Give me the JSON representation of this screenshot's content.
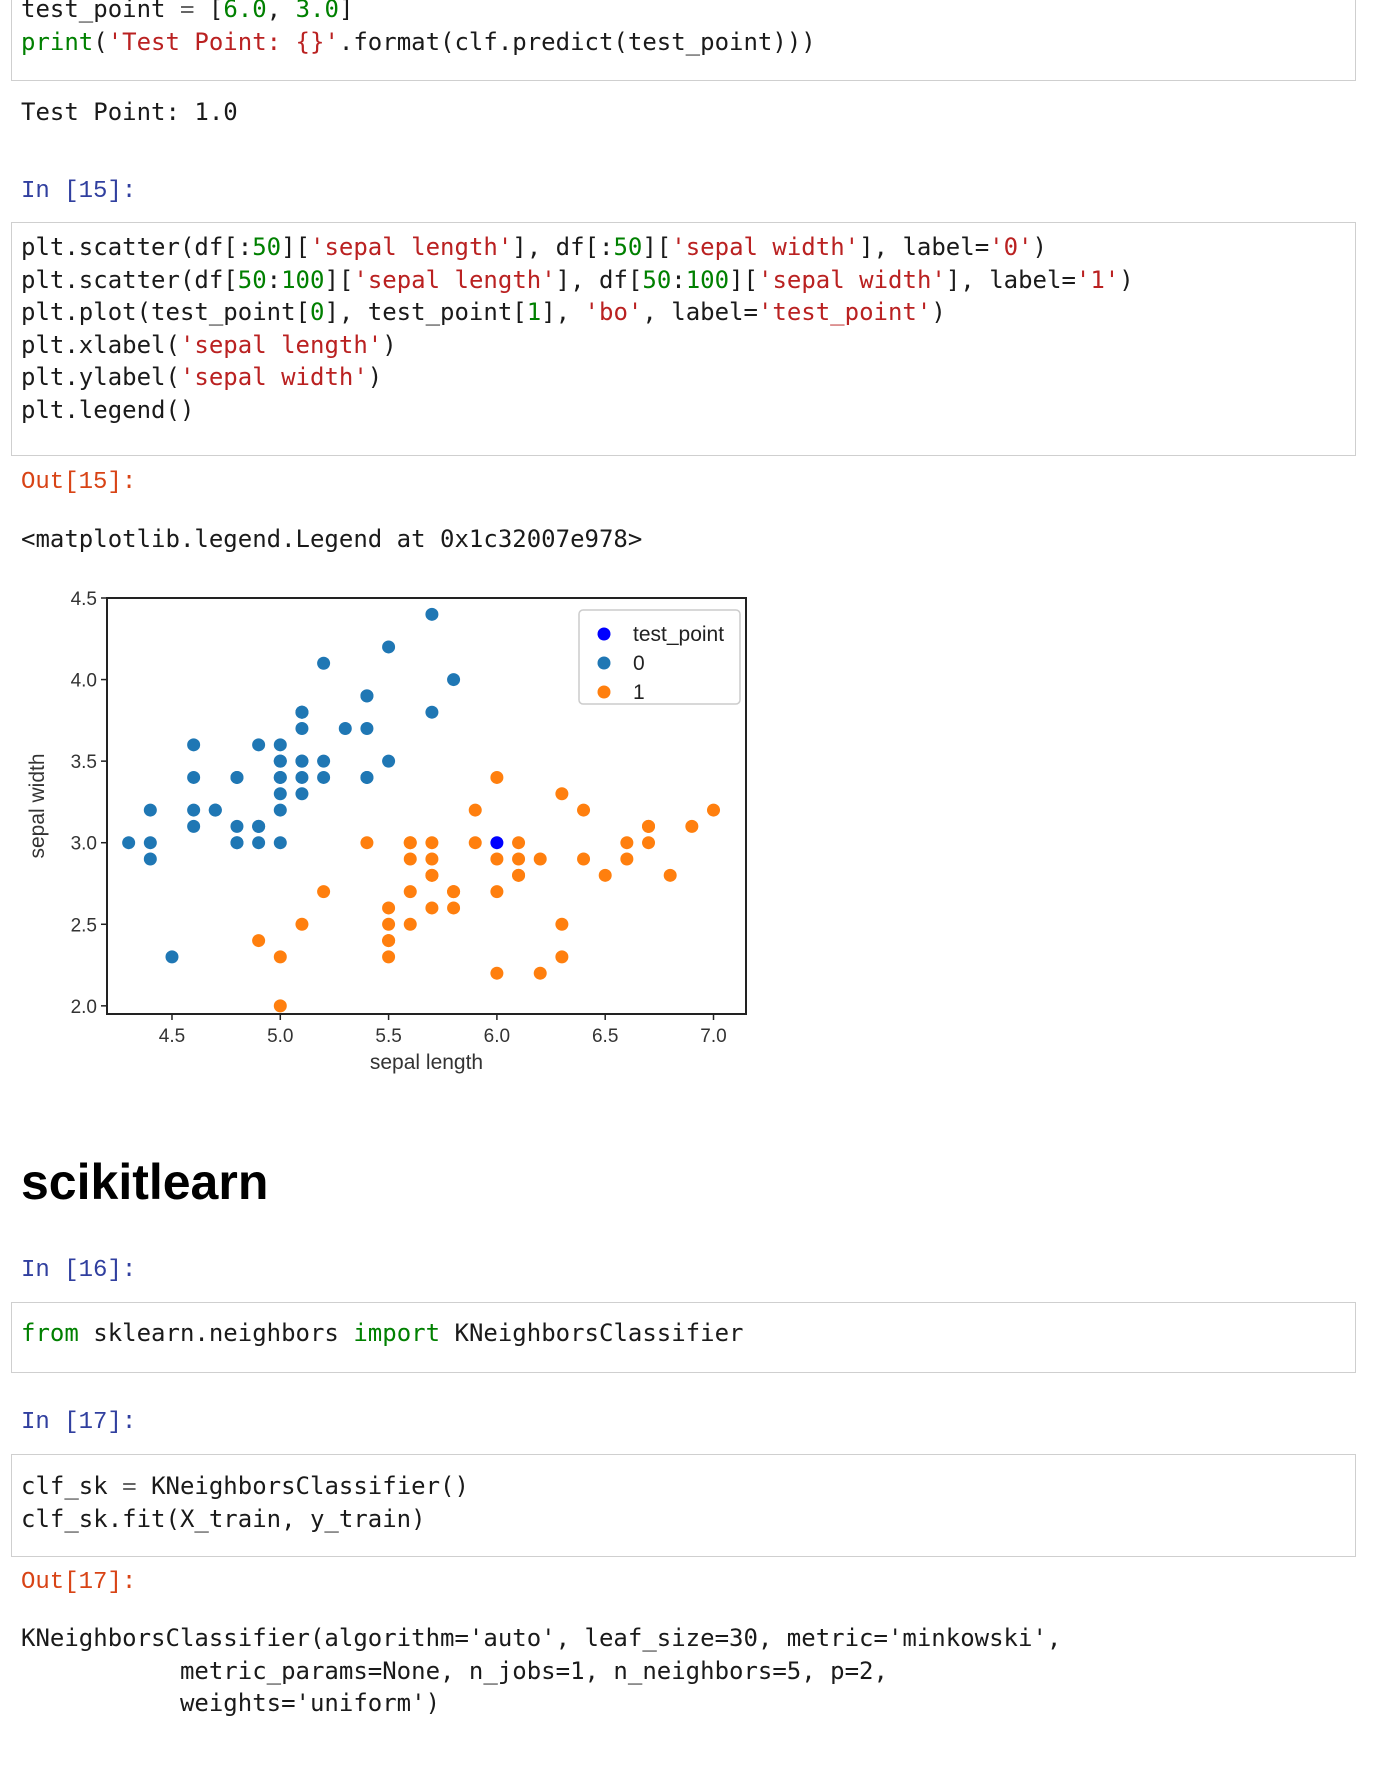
{
  "cell14": {
    "lines": [
      [
        {
          "t": "test_point",
          "c": ""
        },
        {
          "t": " = ",
          "c": "op"
        },
        {
          "t": "[",
          "c": ""
        },
        {
          "t": "6.0",
          "c": "num"
        },
        {
          "t": ", ",
          "c": ""
        },
        {
          "t": "3.0",
          "c": "num"
        },
        {
          "t": "]",
          "c": ""
        }
      ],
      [
        {
          "t": "print",
          "c": "kw"
        },
        {
          "t": "(",
          "c": ""
        },
        {
          "t": "'Test Point: {}'",
          "c": "str"
        },
        {
          "t": ".format(clf.predict(test_point)))",
          "c": ""
        }
      ]
    ],
    "output": "Test Point: 1.0"
  },
  "cell15": {
    "prompt_in": "In [15]:",
    "lines": [
      [
        {
          "t": "plt.scatter(df[:",
          "c": ""
        },
        {
          "t": "50",
          "c": "num"
        },
        {
          "t": "][",
          "c": ""
        },
        {
          "t": "'sepal length'",
          "c": "str"
        },
        {
          "t": "], df[:",
          "c": ""
        },
        {
          "t": "50",
          "c": "num"
        },
        {
          "t": "][",
          "c": ""
        },
        {
          "t": "'sepal width'",
          "c": "str"
        },
        {
          "t": "], label=",
          "c": ""
        },
        {
          "t": "'0'",
          "c": "str"
        },
        {
          "t": ")",
          "c": ""
        }
      ],
      [
        {
          "t": "plt.scatter(df[",
          "c": ""
        },
        {
          "t": "50",
          "c": "num"
        },
        {
          "t": ":",
          "c": ""
        },
        {
          "t": "100",
          "c": "num"
        },
        {
          "t": "][",
          "c": ""
        },
        {
          "t": "'sepal length'",
          "c": "str"
        },
        {
          "t": "], df[",
          "c": ""
        },
        {
          "t": "50",
          "c": "num"
        },
        {
          "t": ":",
          "c": ""
        },
        {
          "t": "100",
          "c": "num"
        },
        {
          "t": "][",
          "c": ""
        },
        {
          "t": "'sepal width'",
          "c": "str"
        },
        {
          "t": "], label=",
          "c": ""
        },
        {
          "t": "'1'",
          "c": "str"
        },
        {
          "t": ")",
          "c": ""
        }
      ],
      [
        {
          "t": "plt.plot(test_point[",
          "c": ""
        },
        {
          "t": "0",
          "c": "num"
        },
        {
          "t": "], test_point[",
          "c": ""
        },
        {
          "t": "1",
          "c": "num"
        },
        {
          "t": "], ",
          "c": ""
        },
        {
          "t": "'bo'",
          "c": "str"
        },
        {
          "t": ", label=",
          "c": ""
        },
        {
          "t": "'test_point'",
          "c": "str"
        },
        {
          "t": ")",
          "c": ""
        }
      ],
      [
        {
          "t": "plt.xlabel(",
          "c": ""
        },
        {
          "t": "'sepal length'",
          "c": "str"
        },
        {
          "t": ")",
          "c": ""
        }
      ],
      [
        {
          "t": "plt.ylabel(",
          "c": ""
        },
        {
          "t": "'sepal width'",
          "c": "str"
        },
        {
          "t": ")",
          "c": ""
        }
      ],
      [
        {
          "t": "plt.legend()",
          "c": ""
        }
      ]
    ],
    "prompt_out": "Out[15]:",
    "output": "<matplotlib.legend.Legend at 0x1c32007e978>"
  },
  "chart_data": {
    "type": "scatter",
    "xlabel": "sepal length",
    "ylabel": "sepal width",
    "xlim": [
      4.2,
      7.15
    ],
    "ylim": [
      1.95,
      4.5
    ],
    "xticks": [
      "4.5",
      "5.0",
      "5.5",
      "6.0",
      "6.5",
      "7.0"
    ],
    "xtick_values": [
      4.5,
      5.0,
      5.5,
      6.0,
      6.5,
      7.0
    ],
    "yticks": [
      "2.0",
      "2.5",
      "3.0",
      "3.5",
      "4.0",
      "4.5"
    ],
    "ytick_values": [
      2.0,
      2.5,
      3.0,
      3.5,
      4.0,
      4.5
    ],
    "legend_position": "top-right",
    "legend": [
      "test_point",
      "0",
      "1"
    ],
    "series": [
      {
        "name": "0",
        "color": "#1f77b4",
        "points": [
          [
            5.1,
            3.5
          ],
          [
            4.9,
            3.0
          ],
          [
            4.7,
            3.2
          ],
          [
            4.6,
            3.1
          ],
          [
            5.0,
            3.6
          ],
          [
            5.4,
            3.9
          ],
          [
            4.6,
            3.4
          ],
          [
            5.0,
            3.4
          ],
          [
            4.4,
            2.9
          ],
          [
            4.9,
            3.1
          ],
          [
            5.4,
            3.7
          ],
          [
            4.8,
            3.4
          ],
          [
            4.8,
            3.0
          ],
          [
            4.3,
            3.0
          ],
          [
            5.8,
            4.0
          ],
          [
            5.7,
            4.4
          ],
          [
            5.4,
            3.9
          ],
          [
            5.1,
            3.5
          ],
          [
            5.7,
            3.8
          ],
          [
            5.1,
            3.8
          ],
          [
            5.4,
            3.4
          ],
          [
            5.1,
            3.7
          ],
          [
            4.6,
            3.6
          ],
          [
            5.1,
            3.3
          ],
          [
            4.8,
            3.4
          ],
          [
            5.0,
            3.0
          ],
          [
            5.0,
            3.4
          ],
          [
            5.2,
            3.5
          ],
          [
            5.2,
            3.4
          ],
          [
            4.7,
            3.2
          ],
          [
            4.8,
            3.1
          ],
          [
            5.4,
            3.4
          ],
          [
            5.2,
            4.1
          ],
          [
            5.5,
            4.2
          ],
          [
            4.9,
            3.1
          ],
          [
            5.0,
            3.2
          ],
          [
            5.5,
            3.5
          ],
          [
            4.9,
            3.6
          ],
          [
            4.4,
            3.0
          ],
          [
            5.1,
            3.4
          ],
          [
            5.0,
            3.5
          ],
          [
            4.5,
            2.3
          ],
          [
            4.4,
            3.2
          ],
          [
            5.0,
            3.5
          ],
          [
            5.1,
            3.8
          ],
          [
            4.8,
            3.0
          ],
          [
            5.1,
            3.8
          ],
          [
            4.6,
            3.2
          ],
          [
            5.3,
            3.7
          ],
          [
            5.0,
            3.3
          ]
        ]
      },
      {
        "name": "1",
        "color": "#ff7f0e",
        "points": [
          [
            7.0,
            3.2
          ],
          [
            6.4,
            3.2
          ],
          [
            6.9,
            3.1
          ],
          [
            5.5,
            2.3
          ],
          [
            6.5,
            2.8
          ],
          [
            5.7,
            2.8
          ],
          [
            6.3,
            3.3
          ],
          [
            4.9,
            2.4
          ],
          [
            6.6,
            2.9
          ],
          [
            5.2,
            2.7
          ],
          [
            5.0,
            2.0
          ],
          [
            5.9,
            3.0
          ],
          [
            6.0,
            2.2
          ],
          [
            6.1,
            2.9
          ],
          [
            5.6,
            2.9
          ],
          [
            6.7,
            3.1
          ],
          [
            5.6,
            3.0
          ],
          [
            5.8,
            2.7
          ],
          [
            6.2,
            2.2
          ],
          [
            5.6,
            2.5
          ],
          [
            5.9,
            3.2
          ],
          [
            6.1,
            2.8
          ],
          [
            6.3,
            2.5
          ],
          [
            6.1,
            2.8
          ],
          [
            6.4,
            2.9
          ],
          [
            6.6,
            3.0
          ],
          [
            6.8,
            2.8
          ],
          [
            6.7,
            3.0
          ],
          [
            6.0,
            2.9
          ],
          [
            5.7,
            2.6
          ],
          [
            5.5,
            2.4
          ],
          [
            5.5,
            2.4
          ],
          [
            5.8,
            2.7
          ],
          [
            6.0,
            2.7
          ],
          [
            5.4,
            3.0
          ],
          [
            6.0,
            3.4
          ],
          [
            6.7,
            3.1
          ],
          [
            6.3,
            2.3
          ],
          [
            5.6,
            3.0
          ],
          [
            5.5,
            2.5
          ],
          [
            5.5,
            2.6
          ],
          [
            6.1,
            3.0
          ],
          [
            5.8,
            2.6
          ],
          [
            5.0,
            2.3
          ],
          [
            5.6,
            2.7
          ],
          [
            5.7,
            3.0
          ],
          [
            5.7,
            2.9
          ],
          [
            6.2,
            2.9
          ],
          [
            5.1,
            2.5
          ],
          [
            5.7,
            2.8
          ]
        ]
      },
      {
        "name": "test_point",
        "color": "#0000ff",
        "points": [
          [
            6.0,
            3.0
          ]
        ]
      }
    ]
  },
  "heading": "scikitlearn",
  "cell16": {
    "prompt_in": "In [16]:",
    "lines": [
      [
        {
          "t": "from",
          "c": "kw"
        },
        {
          "t": " sklearn.neighbors ",
          "c": ""
        },
        {
          "t": "import",
          "c": "kw"
        },
        {
          "t": " KNeighborsClassifier",
          "c": ""
        }
      ]
    ]
  },
  "cell17": {
    "prompt_in": "In [17]:",
    "lines": [
      [
        {
          "t": "clf_sk",
          "c": ""
        },
        {
          "t": " = ",
          "c": "op"
        },
        {
          "t": "KNeighborsClassifier()",
          "c": ""
        }
      ],
      [
        {
          "t": "clf_sk.fit(X_train, y_train)",
          "c": ""
        }
      ]
    ],
    "prompt_out": "Out[17]:",
    "output_lines": [
      "KNeighborsClassifier(algorithm='auto', leaf_size=30, metric='minkowski',",
      "           metric_params=None, n_jobs=1, n_neighbors=5, p=2,",
      "           weights='uniform')"
    ]
  }
}
